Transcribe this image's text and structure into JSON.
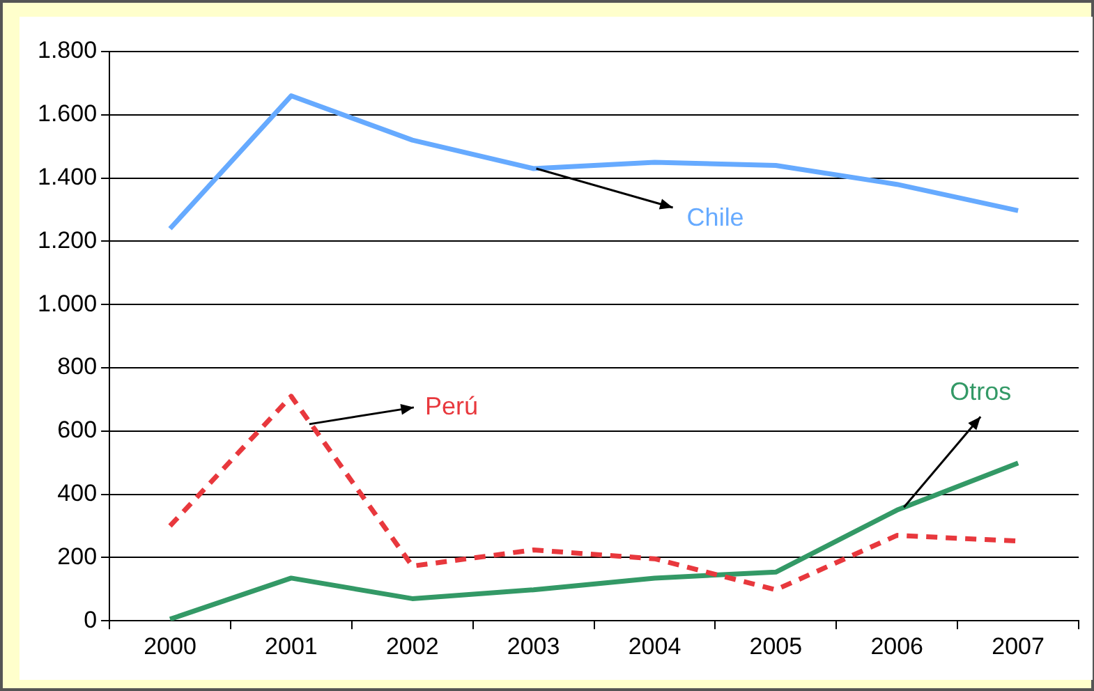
{
  "chart_data": {
    "type": "line",
    "categories": [
      "2000",
      "2001",
      "2002",
      "2003",
      "2004",
      "2005",
      "2006",
      "2007"
    ],
    "series": [
      {
        "name": "Chile",
        "color": "#66aaff",
        "values": [
          1240,
          1660,
          1520,
          1430,
          1450,
          1440,
          1380,
          1297
        ]
      },
      {
        "name": "Perú",
        "color": "#e8383d",
        "line_style": "dashed",
        "values": [
          300,
          710,
          173,
          224,
          196,
          98,
          270,
          252
        ]
      },
      {
        "name": "Otros",
        "color": "#339966",
        "values": [
          5,
          135,
          70,
          98,
          135,
          154,
          350,
          499
        ]
      }
    ],
    "ylim": [
      0,
      1800
    ],
    "yticks": [
      0,
      {
        "value": 200,
        "label": "200"
      },
      {
        "value": 400,
        "label": "400"
      },
      {
        "value": 600,
        "label": "600"
      },
      {
        "value": 800,
        "label": "800"
      },
      {
        "value": 1000,
        "label": "1.000"
      },
      {
        "value": 1200,
        "label": "1.200"
      },
      {
        "value": 1400,
        "label": "1.400"
      },
      {
        "value": 1600,
        "label": "1.600"
      },
      {
        "value": 1800,
        "label": "1.800"
      }
    ],
    "grid": "y",
    "legend": false,
    "marker": "none"
  }
}
